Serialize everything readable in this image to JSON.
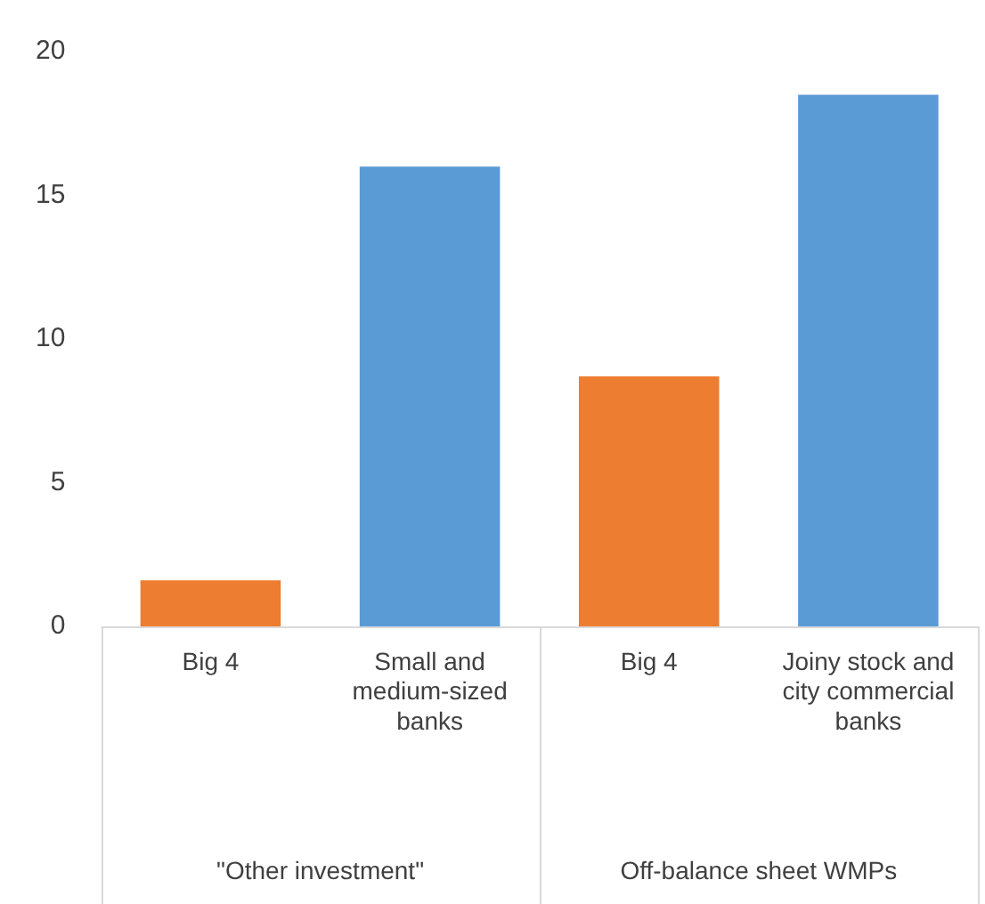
{
  "chart_data": {
    "type": "bar",
    "categories": [
      "Big 4",
      "Small and medium-sized banks",
      "Big 4",
      "Joiny stock and city commercial banks"
    ],
    "values": [
      1.6,
      16.0,
      8.7,
      18.5
    ],
    "colors": [
      "#ed7d31",
      "#5b9bd5",
      "#ed7d31",
      "#5b9bd5"
    ],
    "ylim": [
      0,
      20
    ],
    "yticks": [
      0,
      5,
      10,
      15,
      20
    ],
    "grid": false,
    "legend": false,
    "annotations": [
      "\"Other investment\"",
      "Off-balance sheet WMPs"
    ]
  }
}
